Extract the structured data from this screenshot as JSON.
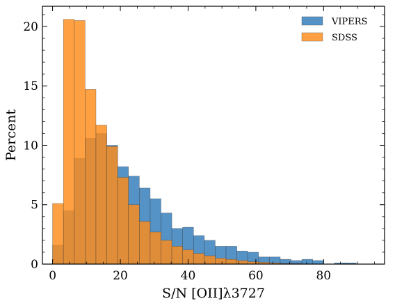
{
  "chart_data": {
    "type": "bar",
    "xlabel": "S/N [OII]λ3727",
    "ylabel": "Percent",
    "xlim": [
      -3,
      98
    ],
    "ylim": [
      0,
      21.7
    ],
    "xticks": [
      0,
      20,
      40,
      60,
      80
    ],
    "yticks": [
      0,
      5,
      10,
      15,
      20
    ],
    "bin_width": 3.2,
    "bin_start": 0,
    "grid": false,
    "legend_position": "top-right",
    "series": [
      {
        "name": "VIPERS",
        "color": "#2f7ab9",
        "values": [
          1.6,
          4.5,
          8.9,
          10.6,
          11.0,
          10.0,
          8.2,
          7.4,
          6.4,
          5.5,
          4.3,
          3.0,
          3.1,
          2.4,
          2.0,
          1.5,
          1.5,
          1.1,
          1.0,
          0.6,
          0.6,
          0.4,
          0.3,
          0.4,
          0.3,
          0.0,
          0.1,
          0.1,
          0.0,
          0.0
        ]
      },
      {
        "name": "SDSS",
        "color": "#ff8c1a",
        "values": [
          5.1,
          20.6,
          20.5,
          14.7,
          11.7,
          9.9,
          7.3,
          5.0,
          3.6,
          2.7,
          2.0,
          1.5,
          1.2,
          0.9,
          0.7,
          0.5,
          0.4,
          0.3,
          0.2,
          0.15,
          0.1,
          0.05,
          0.05,
          0.0,
          0.0,
          0.0,
          0.0,
          0.0,
          0.0,
          0.0
        ]
      }
    ]
  }
}
